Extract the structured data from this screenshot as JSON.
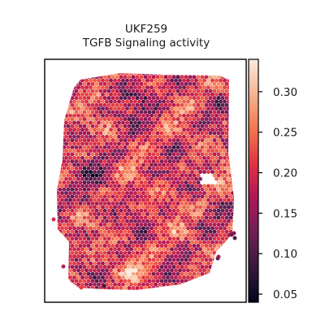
{
  "chart_data": {
    "type": "heatmap",
    "subtype": "spatial-hexbin",
    "title": "UKF259",
    "subtitle": "TGFB Signaling activity",
    "xlabel": "",
    "ylabel": "",
    "colormap": "rocket",
    "colormap_stops": [
      "#03051a",
      "#36193e",
      "#701f57",
      "#ad1759",
      "#e13342",
      "#f37651",
      "#f6b48f",
      "#faebdd"
    ],
    "colorbar": {
      "range": [
        0.04,
        0.34
      ],
      "ticks": [
        0.05,
        0.1,
        0.15,
        0.2,
        0.25,
        0.3
      ],
      "tick_labels": [
        "0.05",
        "0.10",
        "0.15",
        "0.20",
        "0.25",
        "0.30"
      ]
    },
    "value_summary": {
      "min": 0.04,
      "max": 0.34,
      "typical": 0.2
    },
    "grid": false,
    "legend": "colorbar-right"
  }
}
